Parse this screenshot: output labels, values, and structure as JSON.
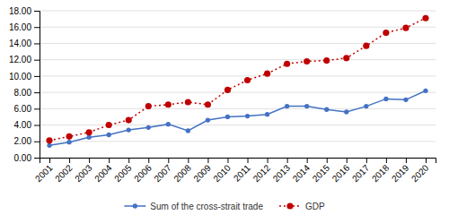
{
  "chart_data": {
    "type": "line",
    "categories": [
      "2001",
      "2002",
      "2003",
      "2004",
      "2005",
      "2006",
      "2007",
      "2008",
      "2009",
      "2010",
      "2011",
      "2012",
      "2013",
      "2014",
      "2015",
      "2016",
      "2017",
      "2018",
      "2019",
      "2020"
    ],
    "series": [
      {
        "name": "Sum of the cross-strait trade",
        "color": "#4472C4",
        "marker": "circle",
        "line_style": "solid",
        "values": [
          1.5,
          1.9,
          2.5,
          2.8,
          3.4,
          3.7,
          4.1,
          3.3,
          4.6,
          5.0,
          5.1,
          5.3,
          6.3,
          6.3,
          5.9,
          5.6,
          6.3,
          7.2,
          7.1,
          8.2
        ]
      },
      {
        "name": "GDP",
        "color": "#C00000",
        "marker": "circle",
        "line_style": "dotted",
        "values": [
          2.1,
          2.6,
          3.1,
          4.0,
          4.6,
          6.3,
          6.5,
          6.8,
          6.5,
          8.3,
          9.5,
          10.3,
          11.5,
          11.8,
          11.9,
          12.2,
          13.7,
          15.3,
          15.9,
          17.1
        ]
      }
    ],
    "ylim": [
      0,
      18
    ],
    "yticks": [
      {
        "value": 0,
        "label": "0.00"
      },
      {
        "value": 2,
        "label": "2.00"
      },
      {
        "value": 4,
        "label": "4.00"
      },
      {
        "value": 6,
        "label": "6.00"
      },
      {
        "value": 8,
        "label": "8.00"
      },
      {
        "value": 10,
        "label": "10.00"
      },
      {
        "value": 12,
        "label": "12.00"
      },
      {
        "value": 14,
        "label": "14.00"
      },
      {
        "value": 16,
        "label": "16.00"
      },
      {
        "value": 18,
        "label": "18.00"
      }
    ],
    "grid": true,
    "legend": "bottom"
  }
}
